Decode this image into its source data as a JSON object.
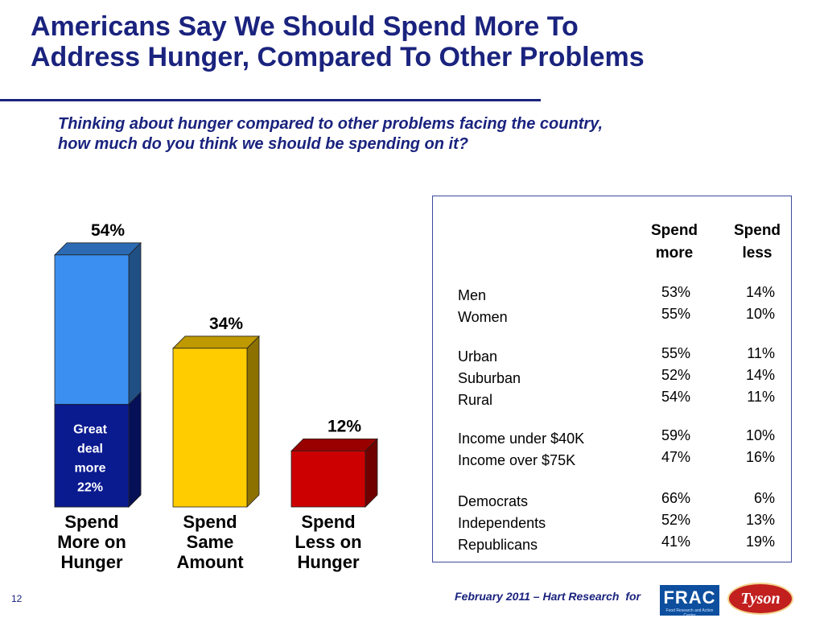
{
  "slide": {
    "title_line1": "Americans Say We Should Spend More To",
    "title_line2": "Address Hunger, Compared To Other Problems",
    "question_line1": "Thinking about hunger compared to other problems facing the country,",
    "question_line2": "how much do you think we should be spending on it?",
    "page_number": "12",
    "footer_text": "February 2011 – Hart Research",
    "footer_for": "for",
    "accent_color": "#1a237e"
  },
  "logos": {
    "frac_text": "FRAC",
    "frac_sub": "Food Research and Action Center",
    "tyson_text": "Tyson"
  },
  "chart_data": {
    "type": "bar",
    "categories": [
      [
        "Spend",
        "More on",
        "Hunger"
      ],
      [
        "Spend",
        "Same",
        "Amount"
      ],
      [
        "Spend",
        "Less on",
        "Hunger"
      ]
    ],
    "values": [
      54,
      34,
      12
    ],
    "value_labels": [
      "54%",
      "34%",
      "12%"
    ],
    "colors": [
      "#3b8ff0",
      "#ffcc00",
      "#cc0000"
    ],
    "sub_segment": {
      "category_index": 0,
      "value": 22,
      "label_lines": [
        "Great",
        "deal",
        "more",
        "22%"
      ],
      "color": "#0a1a8f"
    },
    "ylim": [
      0,
      60
    ],
    "grid": false,
    "legend": "none"
  },
  "table": {
    "headers": [
      [
        "Spend",
        "more"
      ],
      [
        "Spend",
        "less"
      ]
    ],
    "groups": [
      {
        "rows": [
          {
            "label": "Men",
            "more": "53%",
            "less": "14%"
          },
          {
            "label": "Women",
            "more": "55%",
            "less": "10%"
          }
        ]
      },
      {
        "rows": [
          {
            "label": "Urban",
            "more": "55%",
            "less": "11%"
          },
          {
            "label": "Suburban",
            "more": "52%",
            "less": "14%"
          },
          {
            "label": "Rural",
            "more": "54%",
            "less": "11%"
          }
        ]
      },
      {
        "rows": [
          {
            "label": "Income under $40K",
            "more": "59%",
            "less": "10%"
          },
          {
            "label": "Income over $75K",
            "more": "47%",
            "less": "16%"
          }
        ]
      },
      {
        "rows": [
          {
            "label": "Democrats",
            "more": "66%",
            "less": "6%"
          },
          {
            "label": "Independents",
            "more": "52%",
            "less": "13%"
          },
          {
            "label": "Republicans",
            "more": "41%",
            "less": "19%"
          }
        ]
      }
    ]
  }
}
